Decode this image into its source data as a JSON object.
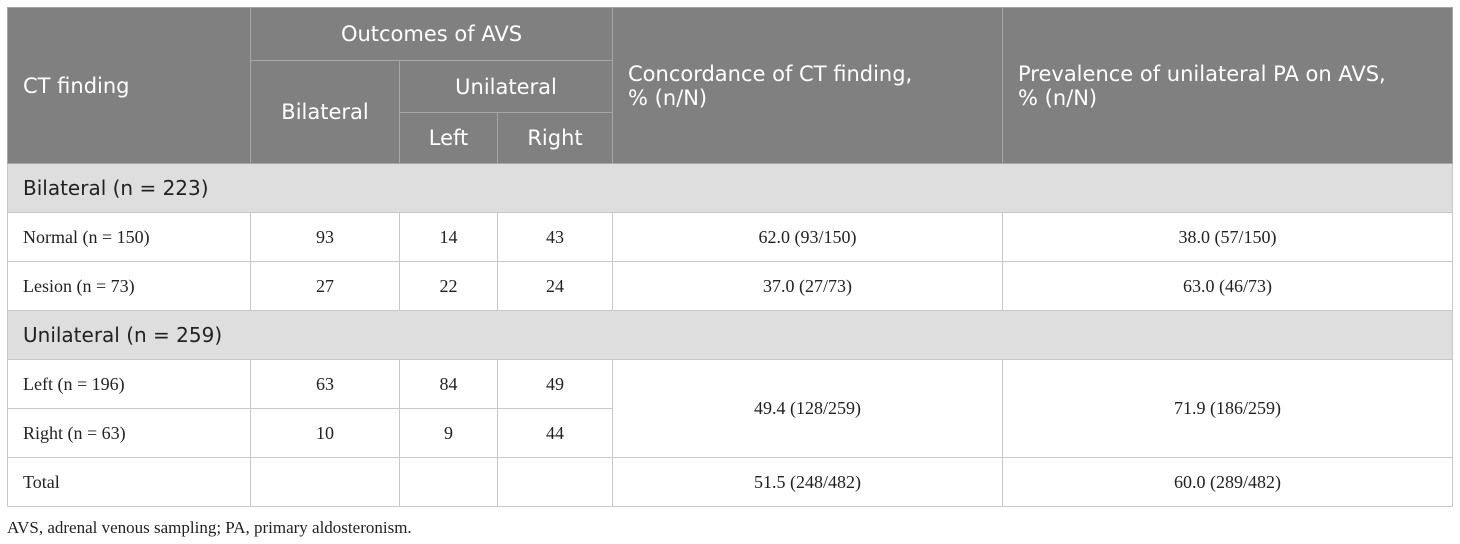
{
  "table": {
    "header": {
      "ct_finding": "CT finding",
      "outcomes": "Outcomes of AVS",
      "bilateral": "Bilateral",
      "unilateral": "Unilateral",
      "left": "Left",
      "right": "Right",
      "concordance": [
        "Concordance of CT finding,",
        "% (n/N)"
      ],
      "prevalence": [
        "Prevalence of unilateral PA on AVS,",
        "% (n/N)"
      ]
    },
    "sections": [
      {
        "title": "Bilateral (n = 223)",
        "rows": [
          [
            "Normal (n = 150)",
            93,
            14,
            43,
            "62.0 (93/150)",
            "38.0 (57/150)"
          ],
          [
            "Lesion (n = 73)",
            27,
            22,
            24,
            "37.0 (27/73)",
            "63.0 (46/73)"
          ]
        ]
      },
      {
        "title": "Unilateral (n = 259)",
        "rows": [
          [
            "Left (n = 196)",
            63,
            84,
            49
          ],
          [
            "Right (n = 63)",
            10,
            9,
            44
          ]
        ],
        "merged": [
          "49.4 (128/259)",
          "71.9 (186/259)"
        ]
      }
    ],
    "total": {
      "label": "Total",
      "concordance": "51.5 (248/482)",
      "prevalence": "60.0 (289/482)"
    }
  },
  "footnote": "AVS, adrenal venous sampling; PA, primary aldosteronism."
}
